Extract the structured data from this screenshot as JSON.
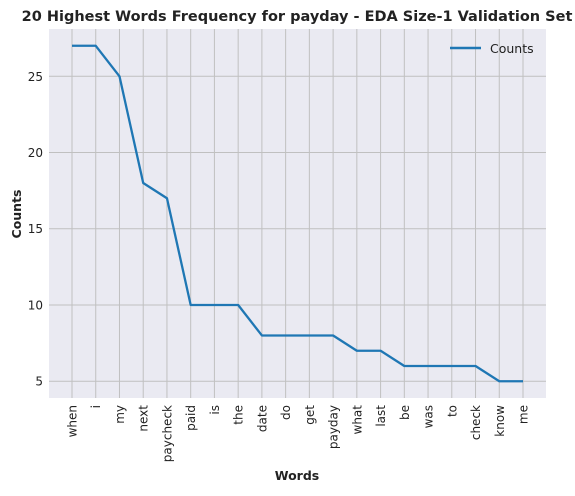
{
  "chart_data": {
    "type": "line",
    "title": "20 Highest Words Frequency for payday - EDA Size-1 Validation Set",
    "xlabel": "Words",
    "ylabel": "Counts",
    "categories": [
      "when",
      "i",
      "my",
      "next",
      "paycheck",
      "paid",
      "is",
      "the",
      "date",
      "do",
      "get",
      "payday",
      "what",
      "last",
      "be",
      "was",
      "to",
      "check",
      "know",
      "me"
    ],
    "series": [
      {
        "name": "Counts",
        "values": [
          27,
          27,
          25,
          18,
          17,
          10,
          10,
          10,
          8,
          8,
          8,
          8,
          7,
          7,
          6,
          6,
          6,
          6,
          5,
          5
        ]
      }
    ],
    "ylim": [
      3.9,
      28.1
    ],
    "yticks": [
      5,
      10,
      15,
      20,
      25
    ],
    "grid": true,
    "legend_position": "top-right",
    "colors": {
      "line": "#1f77b4",
      "plot_bg": "#eaeaf2",
      "grid": "#c0c0c0"
    }
  }
}
